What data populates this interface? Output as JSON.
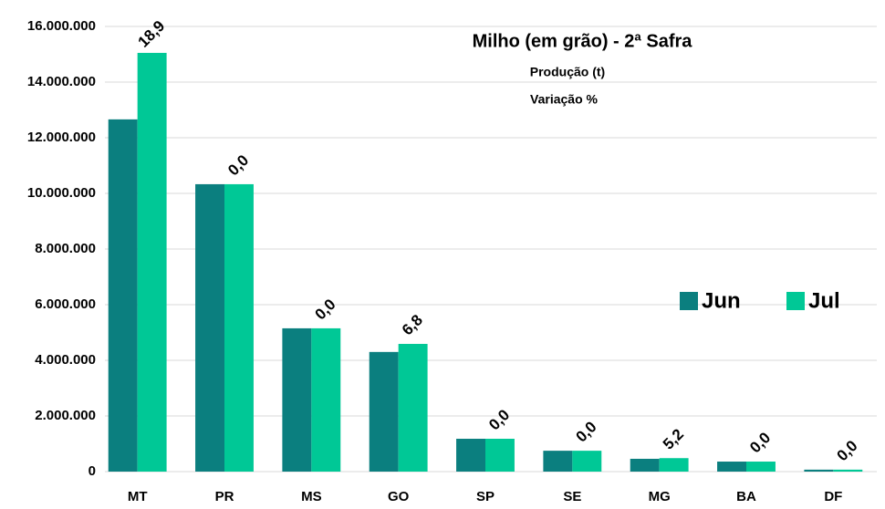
{
  "chart_data": {
    "type": "bar",
    "title": "Milho (em grão) - 2ª Safra",
    "subtitle": [
      "Produção (t)",
      "Variação %"
    ],
    "categories": [
      "MT",
      "PR",
      "MS",
      "GO",
      "SP",
      "SE",
      "MG",
      "BA",
      "DF"
    ],
    "series": [
      {
        "name": "Jun",
        "color": "#0b7f7f",
        "values": [
          12660000,
          10330000,
          5150000,
          4300000,
          1180000,
          750000,
          460000,
          360000,
          70000
        ]
      },
      {
        "name": "Jul",
        "color": "#00c896",
        "values": [
          15050000,
          10330000,
          5150000,
          4590000,
          1180000,
          750000,
          484000,
          360000,
          70000
        ]
      }
    ],
    "annotations": [
      "18,9",
      "0,0",
      "0,0",
      "6,8",
      "0,0",
      "0,0",
      "5,2",
      "0,0",
      "0,0"
    ],
    "ylim": [
      0,
      16000000
    ],
    "yticks": [
      0,
      {
        "value": 2000000,
        "label": "2.000.000"
      },
      {
        "value": 4000000,
        "label": "4.000.000"
      },
      {
        "value": 6000000,
        "label": "6.000.000"
      },
      {
        "value": 8000000,
        "label": "8.000.000"
      },
      {
        "value": 10000000,
        "label": "10.000.000"
      },
      {
        "value": 12000000,
        "label": "12.000.000"
      },
      {
        "value": 14000000,
        "label": "14.000.000"
      },
      {
        "value": 16000000,
        "label": "16.000.000"
      }
    ],
    "grid": true,
    "legend": "right"
  }
}
